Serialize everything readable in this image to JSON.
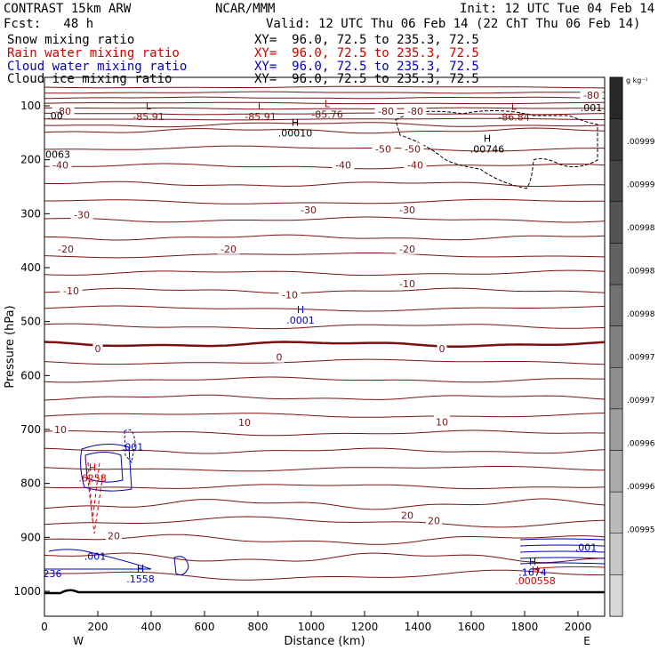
{
  "header": {
    "model": "CONTRAST 15km ARW",
    "org": "NCAR/MMM",
    "init": "Init: 12 UTC Tue 04 Feb 14",
    "fcst": "Fcst:   48 h",
    "valid": "Valid: 12 UTC Thu 06 Feb 14 (22 ChT Thu 06 Feb 14)"
  },
  "fields": [
    {
      "name": "Snow mixing ratio",
      "xy": "XY=  96.0, 72.5 to 235.3, 72.5",
      "color": "#000000"
    },
    {
      "name": "Rain water mixing ratio",
      "xy": "XY=  96.0, 72.5 to 235.3, 72.5",
      "color": "#d00000"
    },
    {
      "name": "Cloud water mixing ratio",
      "xy": "XY=  96.0, 72.5 to 235.3, 72.5",
      "color": "#0000c0"
    },
    {
      "name": "Cloud ice mixing ratio",
      "xy": "XY=  96.0, 72.5 to 235.3, 72.5",
      "color": "#000000"
    }
  ],
  "colorbar": {
    "units": "g kg⁻¹",
    "labels": [
      ".00999",
      ".00999",
      ".00998",
      ".00998",
      ".00998",
      ".00997",
      ".00997",
      ".00996",
      ".00996",
      ".00995"
    ]
  },
  "chart_data": {
    "type": "contour",
    "xlabel": "Distance (km)",
    "ylabel": "Pressure (hPa)",
    "xlim": [
      0,
      2100
    ],
    "ylim": [
      1040,
      50
    ],
    "x_ticks": [
      0,
      200,
      400,
      600,
      800,
      1000,
      1200,
      1400,
      1600,
      1800,
      2000
    ],
    "y_ticks": [
      100,
      200,
      300,
      400,
      500,
      600,
      700,
      800,
      900,
      1000
    ],
    "endpoints": {
      "west": "W",
      "east": "E"
    },
    "temperature_label_color": "#7a1212",
    "temperature_labels": [
      {
        "text": "-80",
        "x": 70,
        "p": 110
      },
      {
        "text": "-80",
        "x": 1280,
        "p": 110
      },
      {
        "text": "-80",
        "x": 1390,
        "p": 110
      },
      {
        "text": "-80",
        "x": 2050,
        "p": 80
      },
      {
        "text": "-50",
        "x": 1270,
        "p": 180
      },
      {
        "text": "-50",
        "x": 1380,
        "p": 180
      },
      {
        "text": "-40",
        "x": 60,
        "p": 210
      },
      {
        "text": "-40",
        "x": 1120,
        "p": 210
      },
      {
        "text": "-40",
        "x": 1390,
        "p": 210
      },
      {
        "text": "-30",
        "x": 140,
        "p": 302
      },
      {
        "text": "-30",
        "x": 990,
        "p": 293
      },
      {
        "text": "-30",
        "x": 1360,
        "p": 293
      },
      {
        "text": "-20",
        "x": 80,
        "p": 365
      },
      {
        "text": "-20",
        "x": 690,
        "p": 365
      },
      {
        "text": "-20",
        "x": 1360,
        "p": 365
      },
      {
        "text": "-10",
        "x": 100,
        "p": 443
      },
      {
        "text": "-10",
        "x": 920,
        "p": 450
      },
      {
        "text": "-10",
        "x": 1360,
        "p": 430
      },
      {
        "text": "0",
        "x": 200,
        "p": 550
      },
      {
        "text": "0",
        "x": 880,
        "p": 566
      },
      {
        "text": "0",
        "x": 1490,
        "p": 550
      },
      {
        "text": "10",
        "x": 60,
        "p": 700
      },
      {
        "text": "10",
        "x": 750,
        "p": 687
      },
      {
        "text": "10",
        "x": 1490,
        "p": 686
      },
      {
        "text": "20",
        "x": 260,
        "p": 897
      },
      {
        "text": "20",
        "x": 1360,
        "p": 859
      },
      {
        "text": "20",
        "x": 1460,
        "p": 869
      }
    ],
    "extrema": [
      {
        "kind": "L",
        "value": "-85.91",
        "x": 390,
        "p": 110,
        "color": "#7a1212"
      },
      {
        "kind": "L",
        "value": "-85.91",
        "x": 810,
        "p": 110,
        "color": "#7a1212"
      },
      {
        "kind": "L",
        "value": "-85.76",
        "x": 1060,
        "p": 106,
        "color": "#7a1212"
      },
      {
        "kind": "L",
        "value": "-86.84",
        "x": 1760,
        "p": 111,
        "color": "#7a1212"
      },
      {
        "kind": "H",
        "value": ".00010",
        "x": 940,
        "p": 140,
        "color": "#000000"
      },
      {
        "kind": "H",
        "value": ".00746",
        "x": 1660,
        "p": 170,
        "color": "#000000"
      },
      {
        "kind": "H",
        "value": ".0001",
        "x": 960,
        "p": 487,
        "color": "#0000c0"
      },
      {
        "kind": "H",
        "value": ".1558",
        "x": 360,
        "p": 967,
        "color": "#0000c0"
      },
      {
        "kind": "H",
        "value": ".6258",
        "x": 180,
        "p": 780,
        "color": "#d00000"
      },
      {
        "kind": "H",
        "value": ".1674",
        "x": 1830,
        "p": 955,
        "color": "#0000c0"
      },
      {
        "kind": "H",
        "value": ".000558",
        "x": 1840,
        "p": 970,
        "color": "#d00000"
      }
    ],
    "misc_labels": [
      {
        "text": ".00",
        "x": 40,
        "p": 118,
        "color": "#000000"
      },
      {
        "text": "0063",
        "x": 50,
        "p": 190,
        "color": "#000000"
      },
      {
        "text": ".001",
        "x": 330,
        "p": 732,
        "color": "#0000c0"
      },
      {
        "text": ".001",
        "x": 190,
        "p": 935,
        "color": "#0000c0"
      },
      {
        "text": "236",
        "x": 30,
        "p": 967,
        "color": "#0000c0"
      },
      {
        "text": ".001",
        "x": 2030,
        "p": 918,
        "color": "#0000c0"
      },
      {
        "text": ".001",
        "x": 2050,
        "p": 103,
        "color": "#000000"
      }
    ]
  }
}
